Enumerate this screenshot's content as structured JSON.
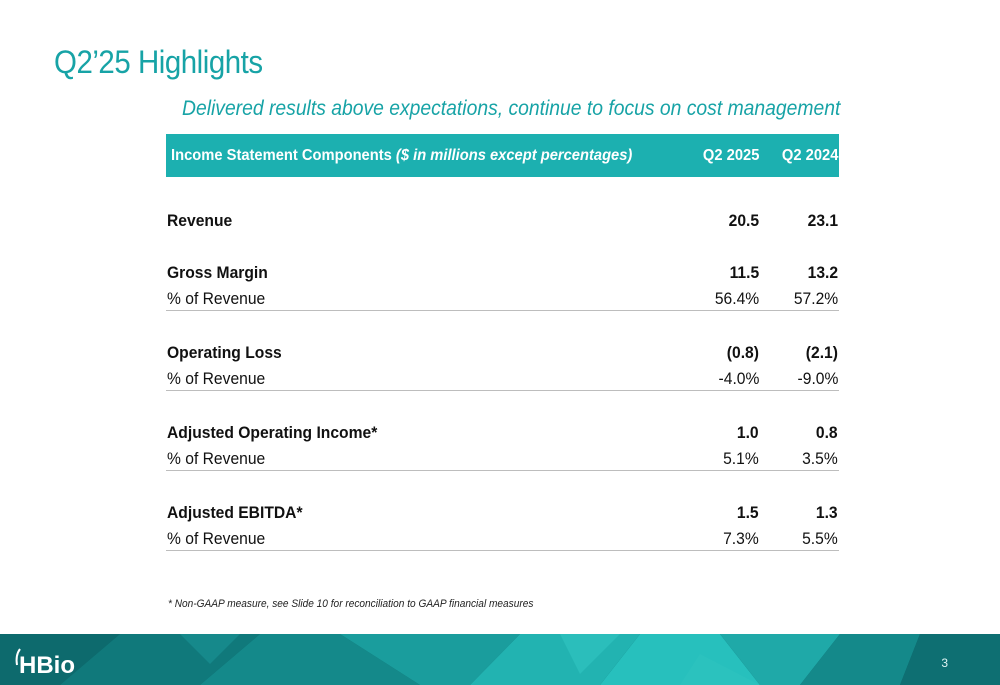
{
  "title": "Q2’25 Highlights",
  "subtitle": "Delivered results above expectations, continue to focus on cost management",
  "table": {
    "header": {
      "label_bold": "Income Statement Components ",
      "label_italic": "($ in millions except percentages)",
      "col1": "Q2 2025",
      "col2": "Q2 2024"
    },
    "rows": [
      {
        "label": "Revenue",
        "q2_2025": "20.5",
        "q2_2024": "23.1",
        "bold": true
      },
      {
        "label": "Gross Margin",
        "q2_2025": "11.5",
        "q2_2024": "13.2",
        "bold": true
      },
      {
        "label": "% of Revenue",
        "q2_2025": "56.4%",
        "q2_2024": "57.2%",
        "bold": false
      },
      {
        "label": "Operating Loss",
        "q2_2025": "(0.8)",
        "q2_2024": "(2.1)",
        "bold": true
      },
      {
        "label": "% of Revenue",
        "q2_2025": "-4.0%",
        "q2_2024": "-9.0%",
        "bold": false
      },
      {
        "label": "Adjusted Operating Income*",
        "q2_2025": "1.0",
        "q2_2024": "0.8",
        "bold": true
      },
      {
        "label": "% of Revenue",
        "q2_2025": "5.1%",
        "q2_2024": "3.5%",
        "bold": false
      },
      {
        "label": "Adjusted EBITDA*",
        "q2_2025": "1.5",
        "q2_2024": "1.3",
        "bold": true
      },
      {
        "label": "% of Revenue",
        "q2_2025": "7.3%",
        "q2_2024": "5.5%",
        "bold": false
      }
    ]
  },
  "footnote": "* Non-GAAP measure, see Slide 10 for reconciliation to GAAP financial measures",
  "logo_text": "HBio",
  "page_number": "3",
  "colors": {
    "accent": "#17a3a6",
    "header_fill": "#1cb0b0",
    "banner_dark": "#0b5a5e",
    "banner_light": "#27c0bd"
  }
}
